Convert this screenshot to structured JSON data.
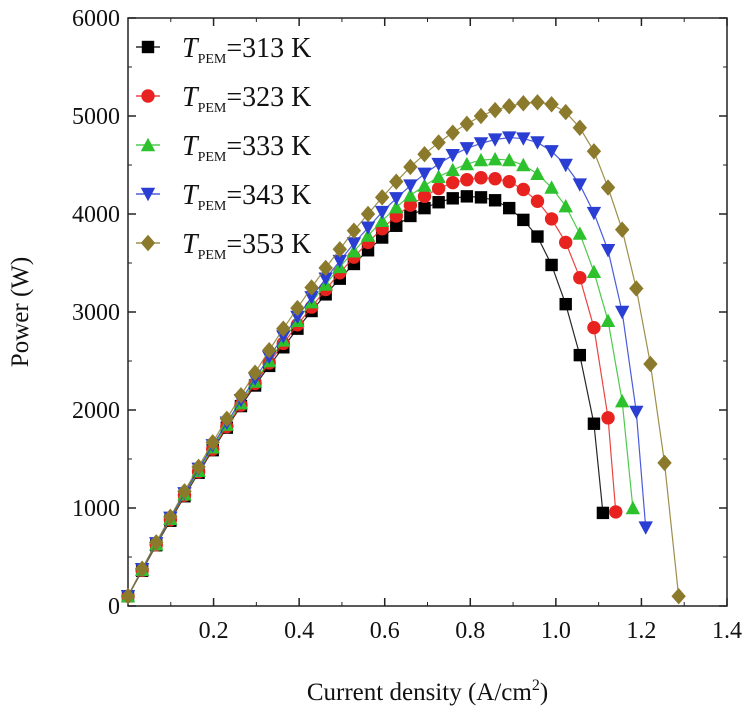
{
  "chart_data": {
    "type": "line",
    "title": "",
    "xlabel": "Current density (A/cm",
    "xlabel_superscript": "2",
    "xlabel_suffix": ")",
    "ylabel": "Power (W)",
    "xlim": [
      0.0,
      1.4
    ],
    "ylim": [
      0,
      6000
    ],
    "xticks": [
      0.2,
      0.4,
      0.6,
      0.8,
      1.0,
      1.2,
      1.4
    ],
    "xtick_labels": [
      "0.2",
      "0.4",
      "0.6",
      "0.8",
      "1.0",
      "1.2",
      "1.4"
    ],
    "yticks": [
      0,
      1000,
      2000,
      3000,
      4000,
      5000,
      6000
    ],
    "ytick_labels": [
      "0",
      "1000",
      "2000",
      "3000",
      "4000",
      "5000",
      "6000"
    ],
    "legend_position": "top-left",
    "legend_symbol": "T",
    "legend_subscript": "PEM",
    "series": [
      {
        "name": "=313 K",
        "color": "#000000",
        "marker": "square",
        "x": [
          0.0,
          0.033,
          0.066,
          0.099,
          0.132,
          0.165,
          0.198,
          0.231,
          0.264,
          0.297,
          0.33,
          0.363,
          0.396,
          0.429,
          0.462,
          0.495,
          0.528,
          0.561,
          0.594,
          0.627,
          0.66,
          0.693,
          0.726,
          0.759,
          0.792,
          0.825,
          0.858,
          0.891,
          0.924,
          0.957,
          0.99,
          1.023,
          1.056,
          1.089,
          1.11
        ],
        "y": [
          100,
          360,
          620,
          870,
          1120,
          1360,
          1590,
          1820,
          2040,
          2250,
          2450,
          2640,
          2830,
          3010,
          3180,
          3340,
          3490,
          3630,
          3760,
          3880,
          3980,
          4060,
          4120,
          4160,
          4180,
          4170,
          4140,
          4060,
          3940,
          3770,
          3480,
          3080,
          2560,
          1860,
          950
        ]
      },
      {
        "name": "=323 K",
        "color": "#e8231f",
        "marker": "circle",
        "x": [
          0.0,
          0.033,
          0.066,
          0.099,
          0.132,
          0.165,
          0.198,
          0.231,
          0.264,
          0.297,
          0.33,
          0.363,
          0.396,
          0.429,
          0.462,
          0.495,
          0.528,
          0.561,
          0.594,
          0.627,
          0.66,
          0.693,
          0.726,
          0.759,
          0.792,
          0.825,
          0.858,
          0.891,
          0.924,
          0.957,
          0.99,
          1.023,
          1.056,
          1.089,
          1.122,
          1.14
        ],
        "y": [
          100,
          365,
          625,
          880,
          1130,
          1370,
          1600,
          1830,
          2050,
          2270,
          2480,
          2680,
          2870,
          3050,
          3230,
          3400,
          3560,
          3710,
          3850,
          3980,
          4090,
          4180,
          4260,
          4320,
          4350,
          4370,
          4360,
          4330,
          4250,
          4130,
          3950,
          3710,
          3350,
          2840,
          1920,
          960
        ]
      },
      {
        "name": "=333 K",
        "color": "#2ec12e",
        "marker": "triangle-up",
        "x": [
          0.0,
          0.033,
          0.066,
          0.099,
          0.132,
          0.165,
          0.198,
          0.231,
          0.264,
          0.297,
          0.33,
          0.363,
          0.396,
          0.429,
          0.462,
          0.495,
          0.528,
          0.561,
          0.594,
          0.627,
          0.66,
          0.693,
          0.726,
          0.759,
          0.792,
          0.825,
          0.858,
          0.891,
          0.924,
          0.957,
          0.99,
          1.023,
          1.056,
          1.089,
          1.122,
          1.155,
          1.18
        ],
        "y": [
          100,
          370,
          630,
          890,
          1140,
          1380,
          1620,
          1850,
          2070,
          2290,
          2500,
          2710,
          2910,
          3100,
          3280,
          3460,
          3620,
          3780,
          3930,
          4070,
          4190,
          4290,
          4380,
          4450,
          4510,
          4550,
          4560,
          4550,
          4500,
          4410,
          4270,
          4080,
          3800,
          3410,
          2910,
          2090,
          1000
        ]
      },
      {
        "name": "=343 K",
        "color": "#2a3ed4",
        "marker": "triangle-down",
        "x": [
          0.0,
          0.033,
          0.066,
          0.099,
          0.132,
          0.165,
          0.198,
          0.231,
          0.264,
          0.297,
          0.33,
          0.363,
          0.396,
          0.429,
          0.462,
          0.495,
          0.528,
          0.561,
          0.594,
          0.627,
          0.66,
          0.693,
          0.726,
          0.759,
          0.792,
          0.825,
          0.858,
          0.891,
          0.924,
          0.957,
          0.99,
          1.023,
          1.056,
          1.089,
          1.122,
          1.155,
          1.188,
          1.21
        ],
        "y": [
          100,
          375,
          640,
          900,
          1150,
          1400,
          1640,
          1870,
          2100,
          2320,
          2540,
          2750,
          2950,
          3150,
          3340,
          3520,
          3700,
          3860,
          4020,
          4160,
          4290,
          4410,
          4510,
          4600,
          4670,
          4720,
          4760,
          4780,
          4770,
          4730,
          4640,
          4500,
          4300,
          4010,
          3630,
          3000,
          1980,
          800
        ]
      },
      {
        "name": "=353 K",
        "color": "#8c7a2c",
        "marker": "diamond",
        "x": [
          0.0,
          0.033,
          0.066,
          0.099,
          0.132,
          0.165,
          0.198,
          0.231,
          0.264,
          0.297,
          0.33,
          0.363,
          0.396,
          0.429,
          0.462,
          0.495,
          0.528,
          0.561,
          0.594,
          0.627,
          0.66,
          0.693,
          0.726,
          0.759,
          0.792,
          0.825,
          0.858,
          0.891,
          0.924,
          0.957,
          0.99,
          1.023,
          1.056,
          1.089,
          1.122,
          1.155,
          1.188,
          1.221,
          1.254,
          1.287
        ],
        "y": [
          100,
          380,
          650,
          910,
          1170,
          1420,
          1670,
          1910,
          2150,
          2380,
          2610,
          2830,
          3040,
          3250,
          3450,
          3640,
          3830,
          4000,
          4170,
          4330,
          4480,
          4610,
          4730,
          4830,
          4920,
          5000,
          5060,
          5100,
          5130,
          5140,
          5120,
          5040,
          4880,
          4640,
          4270,
          3840,
          3240,
          2470,
          1460,
          100
        ]
      }
    ]
  }
}
